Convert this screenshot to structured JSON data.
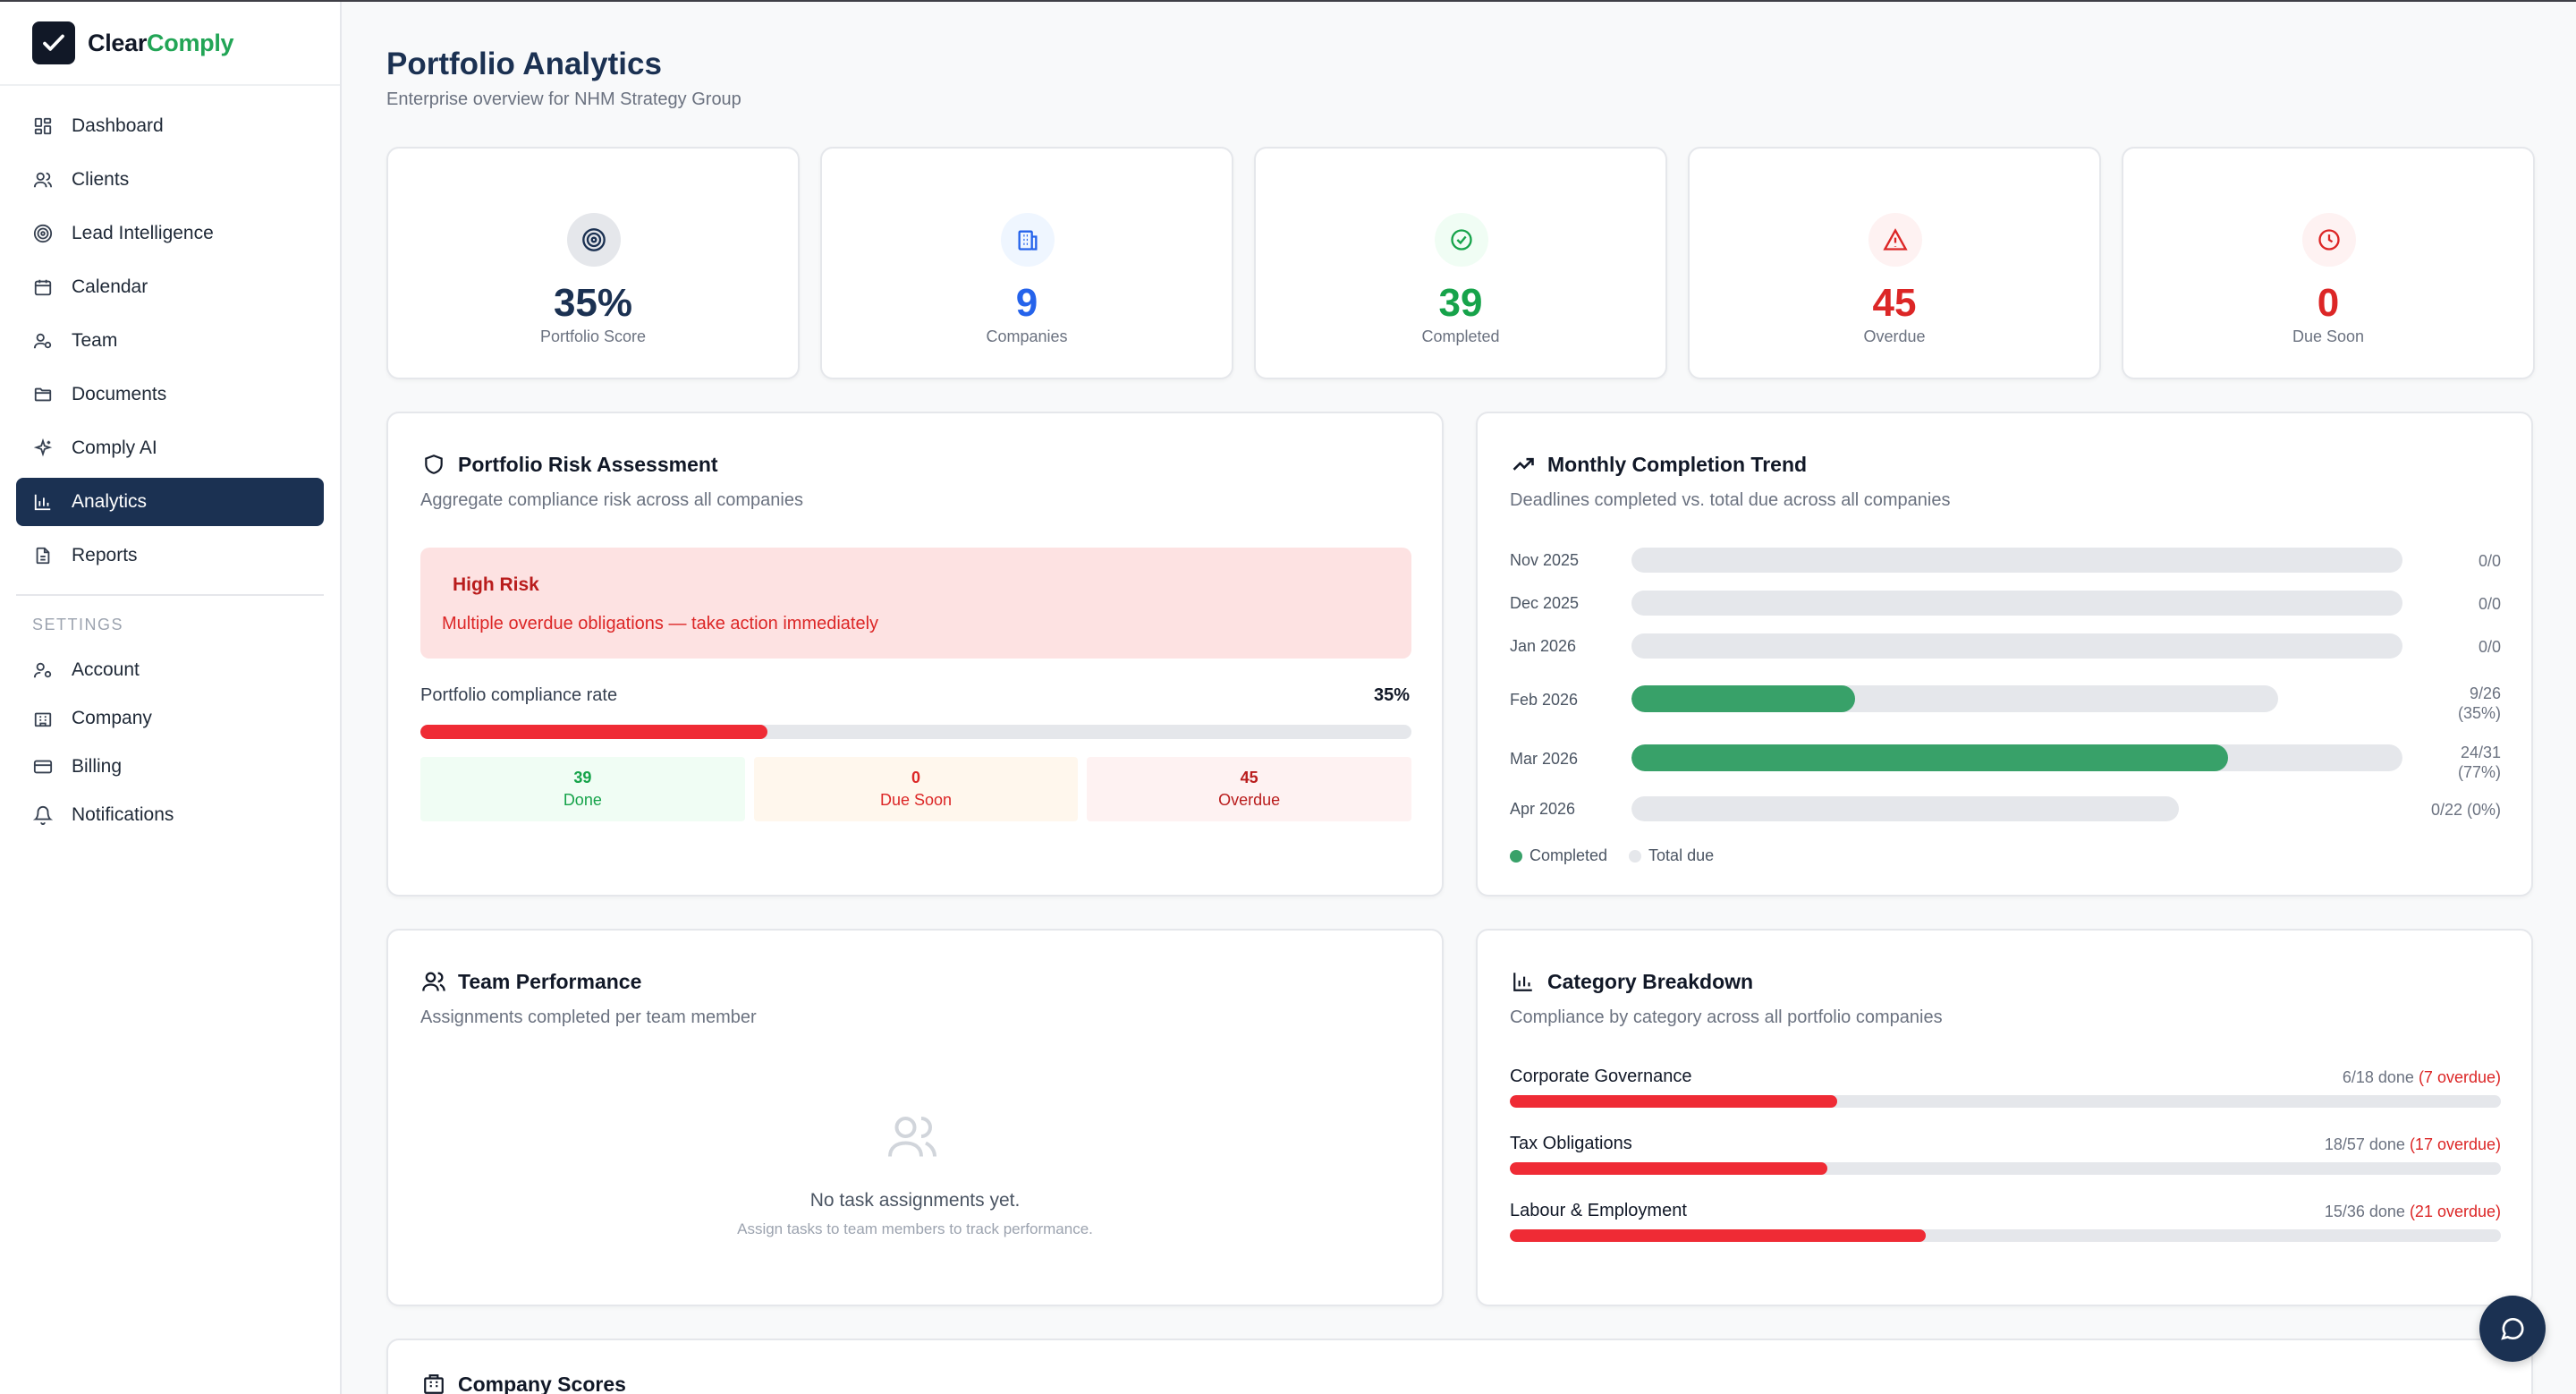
{
  "brand": {
    "name_part1": "Clear",
    "name_part2": "Comply"
  },
  "sidebar": {
    "items": [
      {
        "label": "Dashboard",
        "icon": "grid-icon"
      },
      {
        "label": "Clients",
        "icon": "users-icon"
      },
      {
        "label": "Lead Intelligence",
        "icon": "target-icon"
      },
      {
        "label": "Calendar",
        "icon": "calendar-icon"
      },
      {
        "label": "Team",
        "icon": "user-group-icon"
      },
      {
        "label": "Documents",
        "icon": "folder-icon"
      },
      {
        "label": "Comply AI",
        "icon": "sparkles-icon"
      },
      {
        "label": "Analytics",
        "icon": "bar-chart-icon",
        "active": true
      },
      {
        "label": "Reports",
        "icon": "file-text-icon"
      }
    ],
    "settings_label": "SETTINGS",
    "settings_items": [
      {
        "label": "Account",
        "icon": "user-cog-icon"
      },
      {
        "label": "Company",
        "icon": "building-icon"
      },
      {
        "label": "Billing",
        "icon": "credit-card-icon"
      },
      {
        "label": "Notifications",
        "icon": "bell-icon"
      }
    ]
  },
  "header": {
    "title": "Portfolio Analytics",
    "subtitle": "Enterprise overview for NHM Strategy Group"
  },
  "stats": [
    {
      "value": "35%",
      "label": "Portfolio Score",
      "icon": "target-icon",
      "color": "#1b3152",
      "bg": "#e5e7eb"
    },
    {
      "value": "9",
      "label": "Companies",
      "icon": "building-icon",
      "color": "#2563eb",
      "bg": "#eff6ff"
    },
    {
      "value": "39",
      "label": "Completed",
      "icon": "check-circle-icon",
      "color": "#16a34a",
      "bg": "#f0fdf4"
    },
    {
      "value": "45",
      "label": "Overdue",
      "icon": "alert-triangle-icon",
      "color": "#dc2626",
      "bg": "#fef2f2"
    },
    {
      "value": "0",
      "label": "Due Soon",
      "icon": "clock-icon",
      "color": "#dc2626",
      "bg": "#fef2f2"
    }
  ],
  "risk": {
    "title": "Portfolio Risk Assessment",
    "subtitle": "Aggregate compliance risk across all companies",
    "level": "High Risk",
    "message": "Multiple overdue obligations — take action immediately",
    "rate_label": "Portfolio compliance rate",
    "rate_value": "35%",
    "rate": 0.35,
    "done": {
      "value": "39",
      "label": "Done"
    },
    "due_soon": {
      "value": "0",
      "label": "Due Soon"
    },
    "overdue": {
      "value": "45",
      "label": "Overdue"
    }
  },
  "trend": {
    "title": "Monthly Completion Trend",
    "subtitle": "Deadlines completed vs. total due across all companies",
    "rows": [
      {
        "month": "Nov 2025",
        "value": "0/0",
        "completed": 0,
        "total": 0
      },
      {
        "month": "Dec 2025",
        "value": "0/0",
        "completed": 0,
        "total": 0
      },
      {
        "month": "Jan 2026",
        "value": "0/0",
        "completed": 0,
        "total": 0
      },
      {
        "month": "Feb 2026",
        "value": "9/26",
        "value2": "(35%)",
        "completed": 9,
        "total": 26
      },
      {
        "month": "Mar 2026",
        "value": "24/31",
        "value2": "(77%)",
        "completed": 24,
        "total": 31
      },
      {
        "month": "Apr 2026",
        "value": "0/22 (0%)",
        "completed": 0,
        "total": 22
      }
    ],
    "legend_completed": "Completed",
    "legend_total": "Total due",
    "color_completed": "#38a169",
    "color_total": "#e5e7eb"
  },
  "team": {
    "title": "Team Performance",
    "subtitle": "Assignments completed per team member",
    "empty_title": "No task assignments yet.",
    "empty_sub": "Assign tasks to team members to track performance."
  },
  "category": {
    "title": "Category Breakdown",
    "subtitle": "Compliance by category across all portfolio companies",
    "rows": [
      {
        "name": "Corporate Governance",
        "done": "6/18 done",
        "overdue": "(7 overdue)",
        "rate": 0.33
      },
      {
        "name": "Tax Obligations",
        "done": "18/57 done",
        "overdue": "(17 overdue)",
        "rate": 0.32
      },
      {
        "name": "Labour & Employment",
        "done": "15/36 done",
        "overdue": "(21 overdue)",
        "rate": 0.42
      }
    ]
  },
  "company_scores": {
    "title": "Company Scores"
  },
  "chat": {
    "icon": "chat-bubble-icon"
  }
}
